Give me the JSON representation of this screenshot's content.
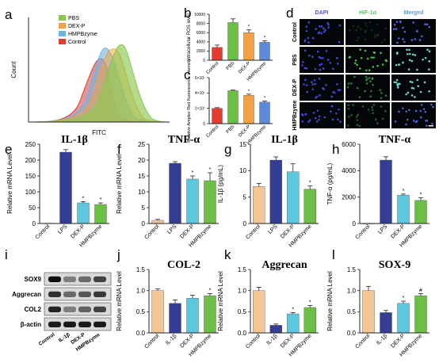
{
  "panel_letters": [
    "a",
    "b",
    "c",
    "d",
    "e",
    "f",
    "g",
    "h",
    "i",
    "j",
    "k",
    "l"
  ],
  "colors": {
    "control": "#f4c595",
    "lps": "#353e94",
    "dexp": "#5ec6dd",
    "hmpb": "#6cbf44",
    "pbs_small": "#6cbf44",
    "control_small": "#e23c35",
    "dexp_small": "#f5a142",
    "hmpb_small": "#5a8ad8"
  },
  "flow": {
    "xlabel": "FITC",
    "ylabel": "Count",
    "legend": [
      "PBS",
      "DEX-P",
      "HMPBzyme",
      "Control"
    ],
    "legend_colors": [
      "#8cc751",
      "#f5a142",
      "#6cb6e5",
      "#e23c35"
    ]
  },
  "micro": {
    "columns": [
      "DAPI",
      "HIF-1α",
      "Merged"
    ],
    "rows": [
      "Control",
      "PBS",
      "DEX-P",
      "HMPBzyme"
    ]
  },
  "wb": {
    "rows": [
      "SOX9",
      "Aggrecan",
      "COL2",
      "β-actin"
    ],
    "lanes": [
      "Control",
      "IL-1β",
      "DEX-P",
      "HMPBzyme"
    ]
  },
  "chart_data": [
    {
      "id": "b",
      "type": "bar",
      "title": "",
      "ylabel": "Intracellular ROS level",
      "ylim": [
        0,
        10000
      ],
      "ticks": [
        "0",
        "2000",
        "4000",
        "6000",
        "8000",
        "10000"
      ],
      "categories": [
        "Control",
        "PBS",
        "DEX-P",
        "HMPBzyme"
      ],
      "values": [
        2800,
        8200,
        6000,
        3900
      ],
      "errors": [
        500,
        800,
        600,
        350
      ],
      "sig": [
        "",
        "",
        "*",
        "*"
      ],
      "colors": [
        "#e23c35",
        "#6cbf44",
        "#f5a142",
        "#5a8ad8"
      ]
    },
    {
      "id": "c",
      "type": "bar",
      "title": "",
      "ylabel": "Relative Amplex Red fluorescence intensity",
      "ylim": [
        0,
        60000000
      ],
      "ticks": [
        "0",
        "2×10⁷",
        "4×10⁷",
        "6×10⁷"
      ],
      "categories": [
        "Control",
        "PBS",
        "DEX-P",
        "HMPBzyme"
      ],
      "values": [
        20000000,
        43000000,
        37000000,
        28000000
      ],
      "errors": [
        900000,
        800000,
        1500000,
        1500000
      ],
      "sig": [
        "",
        "",
        "*",
        "*"
      ],
      "colors": [
        "#e23c35",
        "#6cbf44",
        "#f5a142",
        "#5a8ad8"
      ]
    },
    {
      "id": "e",
      "type": "bar",
      "title": "IL-1β",
      "ylabel": "Relative mRNA Level",
      "ylim": [
        0,
        250
      ],
      "ticks": [
        "0",
        "50",
        "100",
        "150",
        "200",
        "250"
      ],
      "categories": [
        "Control",
        "LPS",
        "DEX-P",
        "HMPBzyme"
      ],
      "values": [
        1,
        225,
        65,
        60
      ],
      "errors": [
        0,
        8,
        4,
        5
      ],
      "sig": [
        "",
        "",
        "*",
        "*"
      ],
      "colors": [
        "#f4c595",
        "#353e94",
        "#5ec6dd",
        "#6cbf44"
      ]
    },
    {
      "id": "f",
      "type": "bar",
      "title": "TNF-α",
      "ylabel": "Relative mRNA Level",
      "ylim": [
        0,
        25
      ],
      "ticks": [
        "0",
        "5",
        "10",
        "15",
        "20",
        "25"
      ],
      "categories": [
        "Control",
        "LPS",
        "DEX-P",
        "HMPBzyme"
      ],
      "values": [
        1,
        19,
        14,
        13.5
      ],
      "errors": [
        0.3,
        0.5,
        1,
        2.5
      ],
      "sig": [
        "",
        "",
        "*",
        "*"
      ],
      "colors": [
        "#f4c595",
        "#353e94",
        "#5ec6dd",
        "#6cbf44"
      ]
    },
    {
      "id": "g",
      "type": "bar",
      "title": "IL-1β",
      "ylabel": "IL-1β (pg/mL)",
      "ylim": [
        0,
        15
      ],
      "ticks": [
        "0",
        "5",
        "10",
        "15"
      ],
      "categories": [
        "Control",
        "LPS",
        "DEX-P",
        "HMPBzyme"
      ],
      "values": [
        7,
        12,
        9.8,
        6.5
      ],
      "errors": [
        0.6,
        0.6,
        1.5,
        0.6
      ],
      "sig": [
        "",
        "",
        "",
        "*"
      ],
      "colors": [
        "#f4c595",
        "#353e94",
        "#5ec6dd",
        "#6cbf44"
      ]
    },
    {
      "id": "h",
      "type": "bar",
      "title": "TNF-α",
      "ylabel": "TNF-α (pg/mL)",
      "ylim": [
        0,
        6000
      ],
      "ticks": [
        "0",
        "2000",
        "4000",
        "6000"
      ],
      "categories": [
        "Control",
        "LPS",
        "DEX-P",
        "HMPBzyme"
      ],
      "values": [
        0,
        4800,
        2150,
        1750
      ],
      "errors": [
        0,
        250,
        80,
        200
      ],
      "sig": [
        "",
        "",
        "*",
        "*"
      ],
      "colors": [
        "#f4c595",
        "#353e94",
        "#5ec6dd",
        "#6cbf44"
      ]
    },
    {
      "id": "j",
      "type": "bar",
      "title": "COL-2",
      "ylabel": "Relative mRNA Level",
      "ylim": [
        0,
        1.5
      ],
      "ticks": [
        "0.0",
        "0.5",
        "1.0",
        "1.5"
      ],
      "categories": [
        "Control",
        "IL-1β",
        "DEX-P",
        "HMPBzyme"
      ],
      "values": [
        1,
        0.7,
        0.82,
        0.88
      ],
      "errors": [
        0.04,
        0.08,
        0.07,
        0.05
      ],
      "sig": [
        "",
        "",
        "",
        "*"
      ],
      "colors": [
        "#f4c595",
        "#353e94",
        "#5ec6dd",
        "#6cbf44"
      ]
    },
    {
      "id": "k",
      "type": "bar",
      "title": "Aggrecan",
      "ylabel": "Relative mRNA Level",
      "ylim": [
        0,
        1.5
      ],
      "ticks": [
        "0.0",
        "0.5",
        "1.0",
        "1.5"
      ],
      "categories": [
        "Control",
        "IL-1β",
        "DEX-P",
        "HMPBzyme"
      ],
      "values": [
        1,
        0.18,
        0.45,
        0.6
      ],
      "errors": [
        0.08,
        0.03,
        0.03,
        0.05
      ],
      "sig": [
        "",
        "",
        "*",
        "*"
      ],
      "colors": [
        "#f4c595",
        "#353e94",
        "#5ec6dd",
        "#6cbf44"
      ]
    },
    {
      "id": "l",
      "type": "bar",
      "title": "SOX-9",
      "ylabel": "Relative mRNA Level",
      "ylim": [
        0,
        1.5
      ],
      "ticks": [
        "0.0",
        "0.5",
        "1.0",
        "1.5"
      ],
      "categories": [
        "Control",
        "IL-1β",
        "DEX-P",
        "HMPBzyme"
      ],
      "values": [
        1,
        0.48,
        0.7,
        0.88
      ],
      "errors": [
        0.1,
        0.05,
        0.05,
        0.05
      ],
      "sig": [
        "",
        "",
        "*",
        "#"
      ],
      "colors": [
        "#f4c595",
        "#353e94",
        "#5ec6dd",
        "#6cbf44"
      ]
    }
  ]
}
